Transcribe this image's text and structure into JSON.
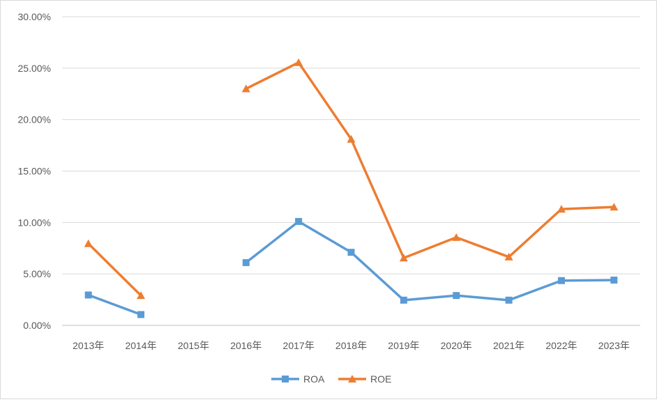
{
  "chart_data": {
    "type": "line",
    "title": "",
    "xlabel": "",
    "ylabel": "",
    "categories": [
      "2013年",
      "2014年",
      "2015年",
      "2016年",
      "2017年",
      "2018年",
      "2019年",
      "2020年",
      "2021年",
      "2022年",
      "2023年"
    ],
    "ylim": [
      0,
      0.3
    ],
    "yticks": [
      0,
      0.05,
      0.1,
      0.15,
      0.2,
      0.25,
      0.3
    ],
    "ytick_labels": [
      "0.00%",
      "5.00%",
      "10.00%",
      "15.00%",
      "20.00%",
      "25.00%",
      "30.00%"
    ],
    "grid": true,
    "legend_position": "bottom",
    "series": [
      {
        "name": "ROA",
        "color": "#5b9bd5",
        "marker": "square",
        "values": [
          0.0295,
          0.0105,
          null,
          0.061,
          0.101,
          0.071,
          0.0245,
          0.029,
          0.0245,
          0.0435,
          0.044
        ]
      },
      {
        "name": "ROE",
        "color": "#ed7d31",
        "marker": "triangle",
        "values": [
          0.0795,
          0.029,
          null,
          0.23,
          0.2555,
          0.181,
          0.0655,
          0.0855,
          0.0665,
          0.113,
          0.115
        ]
      }
    ]
  }
}
